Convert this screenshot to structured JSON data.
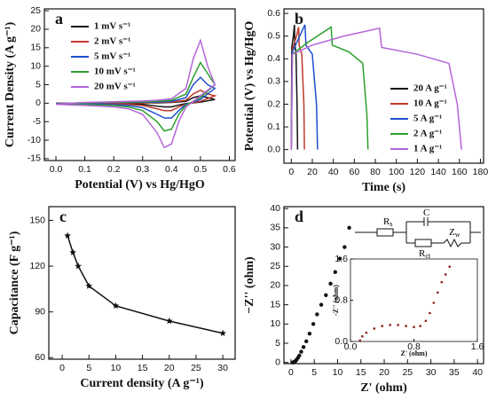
{
  "chart_data": [
    {
      "type": "line",
      "label": "a",
      "xlabel": "Potential (V) vs Hg/HgO",
      "ylabel": "Current Density (A g⁻¹)",
      "xlim": [
        -0.04,
        0.62
      ],
      "ylim": [
        -15.5,
        25.5
      ],
      "xticks": [
        {
          "value": 0,
          "label": "0.0"
        },
        0.1,
        0.2,
        0.3,
        0.4,
        0.5,
        0.6
      ],
      "yticks": [
        -15,
        -10,
        -5,
        0,
        5,
        10,
        15,
        20,
        25
      ],
      "legend": "upper left",
      "x": [
        0,
        0.05,
        0.1,
        0.15,
        0.2,
        0.25,
        0.3,
        0.35,
        0.4,
        0.45,
        0.475,
        0.5,
        0.525,
        0.55,
        0.5,
        0.45,
        0.425,
        0.4,
        0.375,
        0.35,
        0.3,
        0.25,
        0.2,
        0.1,
        0
      ],
      "series": [
        {
          "name": "1 mV s⁻¹",
          "color": "#111111",
          "values": [
            0,
            0,
            0,
            0,
            0,
            0,
            0.1,
            0.1,
            0.2,
            0.5,
            1.5,
            2,
            1.5,
            1,
            0.3,
            -0.1,
            -0.5,
            -1,
            -1,
            -0.8,
            -0.3,
            -0.2,
            -0.1,
            -0.1,
            0
          ]
        },
        {
          "name": "2 mV s⁻¹",
          "color": "#c0392b",
          "values": [
            0,
            0,
            0,
            0.1,
            0.1,
            0.1,
            0.1,
            0.2,
            0.3,
            0.8,
            2.5,
            3.5,
            2.5,
            2,
            0.5,
            -0.2,
            -1,
            -2,
            -2,
            -1.5,
            -0.6,
            -0.3,
            -0.2,
            -0.1,
            0
          ]
        },
        {
          "name": "5 mV s⁻¹",
          "color": "#1f4fd1",
          "values": [
            -0.1,
            0,
            0.1,
            0.1,
            0.2,
            0.2,
            0.3,
            0.3,
            0.5,
            1.5,
            5,
            7,
            5,
            4,
            1,
            -0.3,
            -2,
            -4,
            -4,
            -3,
            -1.2,
            -0.6,
            -0.4,
            -0.3,
            -0.1
          ]
        },
        {
          "name": "10 mV s⁻¹",
          "color": "#2ca02c",
          "values": [
            -0.2,
            0,
            0.1,
            0.2,
            0.3,
            0.3,
            0.4,
            0.5,
            0.8,
            2.5,
            7,
            11,
            8,
            5,
            1.5,
            -0.5,
            -3,
            -7,
            -7.5,
            -5,
            -2,
            -1,
            -0.6,
            -0.4,
            -0.2
          ]
        },
        {
          "name": "20 mV s⁻¹",
          "color": "#b565d8",
          "values": [
            -0.3,
            0,
            0.2,
            0.3,
            0.4,
            0.5,
            0.6,
            0.8,
            1.2,
            4,
            12,
            17,
            10,
            5,
            2,
            -1,
            -5,
            -11,
            -12,
            -8,
            -3,
            -1.5,
            -1,
            -0.6,
            -0.3
          ]
        }
      ]
    },
    {
      "type": "line",
      "label": "b",
      "xlabel": "Time (s)",
      "ylabel": "Potential (V) vs Hg/HgO",
      "xlim": [
        -7,
        183
      ],
      "ylim": [
        -0.06,
        0.62
      ],
      "xticks": [
        0,
        20,
        40,
        60,
        80,
        100,
        120,
        140,
        160,
        180
      ],
      "yticks": [
        {
          "value": 0,
          "label": "0.0"
        },
        0.1,
        0.2,
        0.3,
        0.4,
        0.5,
        0.6
      ],
      "legend": "lower right",
      "series": [
        {
          "name": "20 A g⁻¹",
          "color": "#111111",
          "x": [
            0,
            0.5,
            2,
            3,
            3.3,
            4.5,
            5.5,
            6
          ],
          "values": [
            0,
            0.45,
            0.5,
            0.55,
            0.47,
            0.42,
            0.2,
            0
          ]
        },
        {
          "name": "10 A g⁻¹",
          "color": "#c0392b",
          "x": [
            0,
            1,
            5,
            7,
            7.5,
            10,
            12,
            12.5
          ],
          "values": [
            0,
            0.44,
            0.5,
            0.54,
            0.46,
            0.42,
            0.2,
            0
          ]
        },
        {
          "name": "5 A g⁻¹",
          "color": "#1f4fd1",
          "x": [
            0,
            1,
            8,
            13,
            14,
            20,
            24,
            25
          ],
          "values": [
            0,
            0.43,
            0.5,
            0.55,
            0.46,
            0.42,
            0.2,
            0
          ]
        },
        {
          "name": "2 A g⁻¹",
          "color": "#2ca02c",
          "x": [
            0,
            1,
            15,
            38,
            39,
            55,
            68,
            72,
            73
          ],
          "values": [
            0,
            0.42,
            0.47,
            0.54,
            0.46,
            0.43,
            0.38,
            0.15,
            0
          ]
        },
        {
          "name": "1 A g⁻¹",
          "color": "#b565d8",
          "x": [
            0,
            1,
            20,
            50,
            84,
            86,
            120,
            150,
            158,
            162
          ],
          "values": [
            0,
            0.42,
            0.46,
            0.5,
            0.535,
            0.45,
            0.42,
            0.38,
            0.2,
            0
          ]
        }
      ]
    },
    {
      "type": "line",
      "label": "c",
      "xlabel": "Current density (A g⁻¹)",
      "ylabel": "Capacitance (F g⁻¹)",
      "xlim": [
        -2.5,
        32.3
      ],
      "ylim": [
        59,
        159
      ],
      "xticks": [
        0,
        5,
        10,
        15,
        20,
        25,
        30
      ],
      "yticks": [
        60,
        90,
        120,
        150
      ],
      "marker": "star",
      "x": [
        1,
        2,
        3,
        5,
        10,
        20,
        30
      ],
      "series": [
        {
          "color": "#111111",
          "values": [
            140,
            129,
            120,
            107,
            94,
            84,
            76
          ]
        }
      ]
    },
    {
      "type": "scatter",
      "label": "d",
      "xlabel": "Z' (ohm)",
      "ylabel": "−Z'' (ohm)",
      "xlim": [
        -1.5,
        41.3
      ],
      "ylim": [
        -0.3,
        40.5
      ],
      "xticks": [
        0,
        5,
        10,
        15,
        20,
        25,
        30,
        35,
        40
      ],
      "yticks": [
        0,
        5,
        10,
        15,
        20,
        25,
        30,
        35,
        40
      ],
      "color": "#111111",
      "x": [
        0.4,
        0.6,
        0.8,
        1.0,
        1.2,
        1.5,
        1.8,
        2.2,
        2.7,
        3.3,
        4,
        4.8,
        5.6,
        6.5,
        7.5,
        8.5,
        9.5,
        10.5,
        11.5,
        12.5
      ],
      "values": [
        0,
        0.1,
        0.2,
        0.4,
        0.7,
        1.2,
        1.8,
        2.8,
        4,
        5.5,
        7.5,
        10,
        12.5,
        15,
        17.5,
        20.5,
        23.5,
        27,
        30,
        35
      ]
    },
    {
      "type": "scatter",
      "xlabel": "Z' (ohm)",
      "ylabel": "-Z'' (ohm)",
      "xlim": [
        0,
        1.6
      ],
      "ylim": [
        0,
        1.6
      ],
      "xticks": [
        {
          "value": 0,
          "label": "0.0"
        },
        0.8,
        1.6
      ],
      "yticks": [
        {
          "value": 0,
          "label": "0.0"
        },
        0.8,
        1.6
      ],
      "color": "#8b1a1a",
      "x": [
        0.12,
        0.15,
        0.2,
        0.3,
        0.4,
        0.5,
        0.6,
        0.7,
        0.8,
        0.88,
        0.95,
        1.0,
        1.05,
        1.1,
        1.15,
        1.2,
        1.25
      ],
      "values": [
        0.02,
        0.1,
        0.17,
        0.25,
        0.3,
        0.32,
        0.32,
        0.3,
        0.28,
        0.3,
        0.4,
        0.55,
        0.75,
        0.95,
        1.15,
        1.3,
        1.45
      ]
    }
  ],
  "circuit": {
    "elements": [
      {
        "text": "R",
        "sub": "s"
      },
      {
        "text": "C"
      },
      {
        "text": "Z",
        "sub": "w"
      },
      {
        "text": "R",
        "sub": "ct"
      }
    ]
  }
}
